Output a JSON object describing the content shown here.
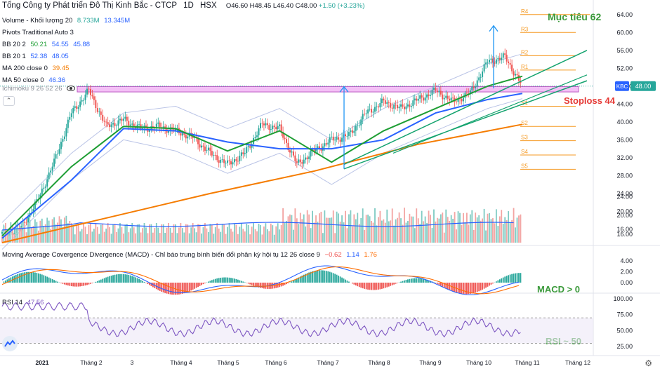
{
  "header": {
    "symbol_title": "Tổng Công ty Phát triển Đô Thị Kinh Bắc - CTCP",
    "interval": "1D",
    "exchange": "HSX",
    "open": "O46.60",
    "high": "H48.45",
    "low": "L46.40",
    "close": "C48.00",
    "change": "+1.50 (+3.23%)"
  },
  "legend": {
    "volume": {
      "label": "Volume - Khối lượng 20",
      "v1": "8.733M",
      "v2": "13.345M"
    },
    "pivots": {
      "label": "Pivots Traditional Auto 3"
    },
    "bb2": {
      "label": "BB 20 2",
      "v1": "50.21",
      "v2": "54.55",
      "v3": "45.88"
    },
    "bb1": {
      "label": "BB 20 1",
      "v1": "52.38",
      "v2": "48.05"
    },
    "ma200": {
      "label": "MA 200 close 0",
      "v1": "39.45"
    },
    "ma50": {
      "label": "MA 50 close 0",
      "v1": "46.36"
    },
    "ichimoku": {
      "label": "Ichimoku 9 26 52 26"
    }
  },
  "macd_legend": {
    "label": "Moving Average Covergence Divergence (MACD) - Chỉ báo trung bình biến đổi phân kỳ hội tụ 12 26 close 9",
    "v1": "−0.62",
    "v2": "1.14",
    "v3": "1.76"
  },
  "rsi_legend": {
    "label": "RSI 14",
    "v1": "47.56"
  },
  "annotations": {
    "target": "Mục tiêu 62",
    "stoploss": "Stoploss 44",
    "macd_note": "MACD > 0",
    "rsi_note": "RSI ~ 50",
    "price_tag_symbol": "KBC",
    "price_tag_value": "48.00"
  },
  "pivot_labels": [
    "R4",
    "R3",
    "R2",
    "R1",
    "S1",
    "S2",
    "S3",
    "S4",
    "S5"
  ],
  "colors": {
    "up": "#26a69a",
    "down": "#ef5350",
    "ma50": "#2962ff",
    "ma200": "#f57c00",
    "bb_basis": "#1e9e34",
    "channel": "#13a36e",
    "pivot": "#f59a23",
    "zone": "#f2b5f5",
    "arrow": "#2196f3",
    "target_text": "#3b9a3b",
    "stop_text": "#e53935",
    "macd_line": "#2962ff",
    "signal_line": "#ff6d00",
    "rsi_line": "#7e57c2"
  },
  "chart_data": [
    {
      "type": "candlestick",
      "title": "Tổng Công ty Phát triển Đô Thị Kinh Bắc - CTCP",
      "x_ticks": [
        "2021",
        "Tháng 2",
        "3",
        "Tháng 4",
        "Tháng 5",
        "Tháng 6",
        "Tháng 7",
        "Tháng 8",
        "Tháng 9",
        "Tháng 10",
        "Tháng 11",
        "Tháng 12"
      ],
      "y_ticks": [
        16.0,
        20.0,
        24.0,
        28.0,
        32.0,
        36.0,
        40.0,
        44.0,
        48.0,
        52.0,
        56.0,
        60.0,
        64.0
      ],
      "ylim": [
        13.0,
        66.0
      ],
      "close_series": {
        "x": [
          0,
          10,
          20,
          30,
          40,
          50,
          60,
          70,
          80,
          90,
          100,
          110,
          120,
          130,
          140,
          150,
          160,
          170,
          180,
          190,
          200,
          210,
          220,
          230
        ],
        "y": [
          15.0,
          15.8,
          22.0,
          31.0,
          42.0,
          47.0,
          39.0,
          40.5,
          38.5,
          39.0,
          38.0,
          36.5,
          33.0,
          30.5,
          33.0,
          39.5,
          38.5,
          30.5,
          33.5,
          36.0,
          37.0,
          42.0,
          44.5,
          43.0
        ]
      },
      "close_series_late": {
        "x": [
          240,
          250,
          260,
          270,
          280,
          290,
          300,
          310,
          320,
          330
        ],
        "y": [
          45.0,
          47.0,
          44.5,
          46.5,
          53.5,
          54.5,
          48.0,
          48.0,
          48.0,
          48.0
        ]
      },
      "ma50": {
        "x": [
          0,
          40,
          70,
          100,
          130,
          160,
          190,
          220,
          250,
          280,
          300
        ],
        "y": [
          14.0,
          27.0,
          38.5,
          38.0,
          35.5,
          34.0,
          34.0,
          36.0,
          42.0,
          45.0,
          46.36
        ]
      },
      "ma200": {
        "x": [
          0,
          60,
          120,
          180,
          240,
          300
        ],
        "y": [
          13.0,
          18.5,
          24.0,
          29.0,
          35.0,
          39.45
        ]
      },
      "bb_basis": {
        "x": [
          0,
          40,
          70,
          100,
          130,
          160,
          190,
          220,
          250,
          280,
          300
        ],
        "y": [
          14.5,
          30.0,
          39.0,
          38.5,
          33.5,
          38.0,
          31.0,
          38.0,
          43.0,
          48.0,
          50.21
        ]
      },
      "pivot_levels": {
        "R4": 64.0,
        "R3": 60.0,
        "R2": 54.8,
        "R1": 51.6,
        "S1": 43.5,
        "S2": 39.0,
        "S3": 35.8,
        "S4": 32.6,
        "S5": 29.4
      },
      "zone": [
        46.7,
        47.9
      ],
      "last_price": 48.0
    },
    {
      "type": "bar",
      "title": "Volume - Khối lượng 20",
      "y_ticks": [
        16.0,
        20.0,
        24.0
      ],
      "last_values": [
        "8.733M",
        "13.345M"
      ]
    },
    {
      "type": "line",
      "title": "Moving Average Covergence Divergence (MACD)",
      "y_ticks": [
        0.0,
        2.0,
        4.0
      ],
      "last_values": [
        -0.62,
        1.14,
        1.76
      ]
    },
    {
      "type": "line",
      "title": "RSI 14",
      "y_ticks": [
        25.0,
        50.0,
        75.0,
        100.0
      ],
      "last_value": 47.56
    }
  ]
}
